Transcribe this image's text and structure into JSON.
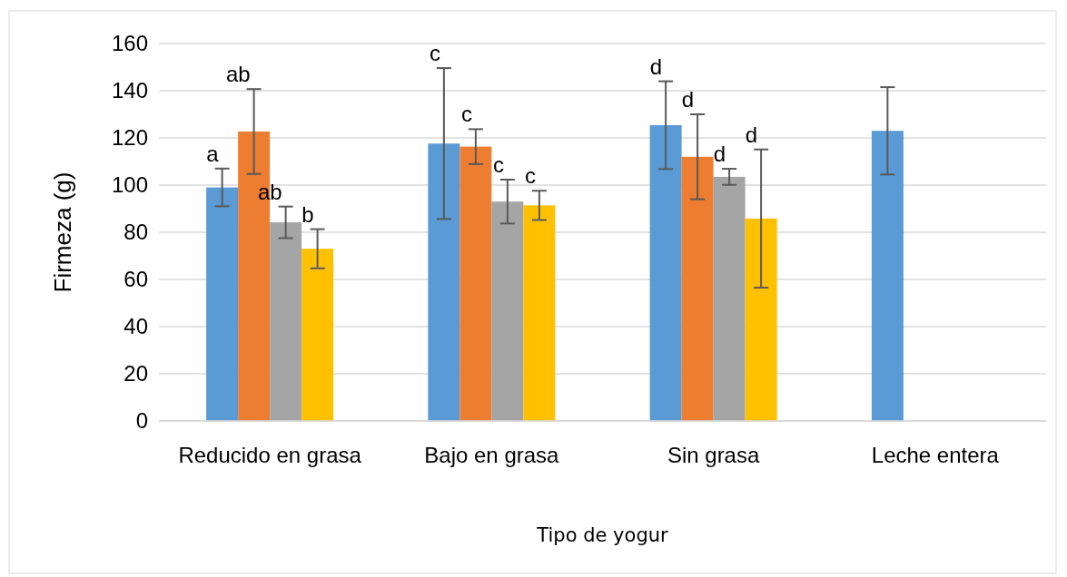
{
  "chart_data": {
    "type": "bar",
    "xlabel": "Tipo de yogur",
    "ylabel": "Firmeza (g)",
    "categories": [
      "Reducido en grasa",
      "Bajo en grasa",
      "Sin grasa",
      "Leche entera"
    ],
    "series": [
      {
        "color": "#5b9bd5",
        "values": [
          99,
          117.6,
          125.4,
          123
        ],
        "errors": [
          8,
          32,
          18.6,
          18.5
        ]
      },
      {
        "color": "#ed7d31",
        "values": [
          122.7,
          116.3,
          112,
          null
        ],
        "errors": [
          18,
          7.4,
          18,
          null
        ]
      },
      {
        "color": "#a5a5a5",
        "values": [
          84.2,
          93,
          103.5,
          null
        ],
        "errors": [
          6.7,
          9.3,
          3.4,
          null
        ]
      },
      {
        "color": "#ffc000",
        "values": [
          73,
          91.4,
          85.8,
          null
        ],
        "errors": [
          8.3,
          6.2,
          29.3,
          null
        ]
      }
    ],
    "ylim": [
      0,
      160
    ],
    "yticks": [
      0,
      20,
      40,
      60,
      80,
      100,
      120,
      140,
      160
    ],
    "grid": "y",
    "annotations": [
      "a",
      "ab",
      "ab",
      "b",
      "c",
      "c",
      "c",
      "c",
      "d",
      "d",
      "d",
      "d"
    ]
  }
}
